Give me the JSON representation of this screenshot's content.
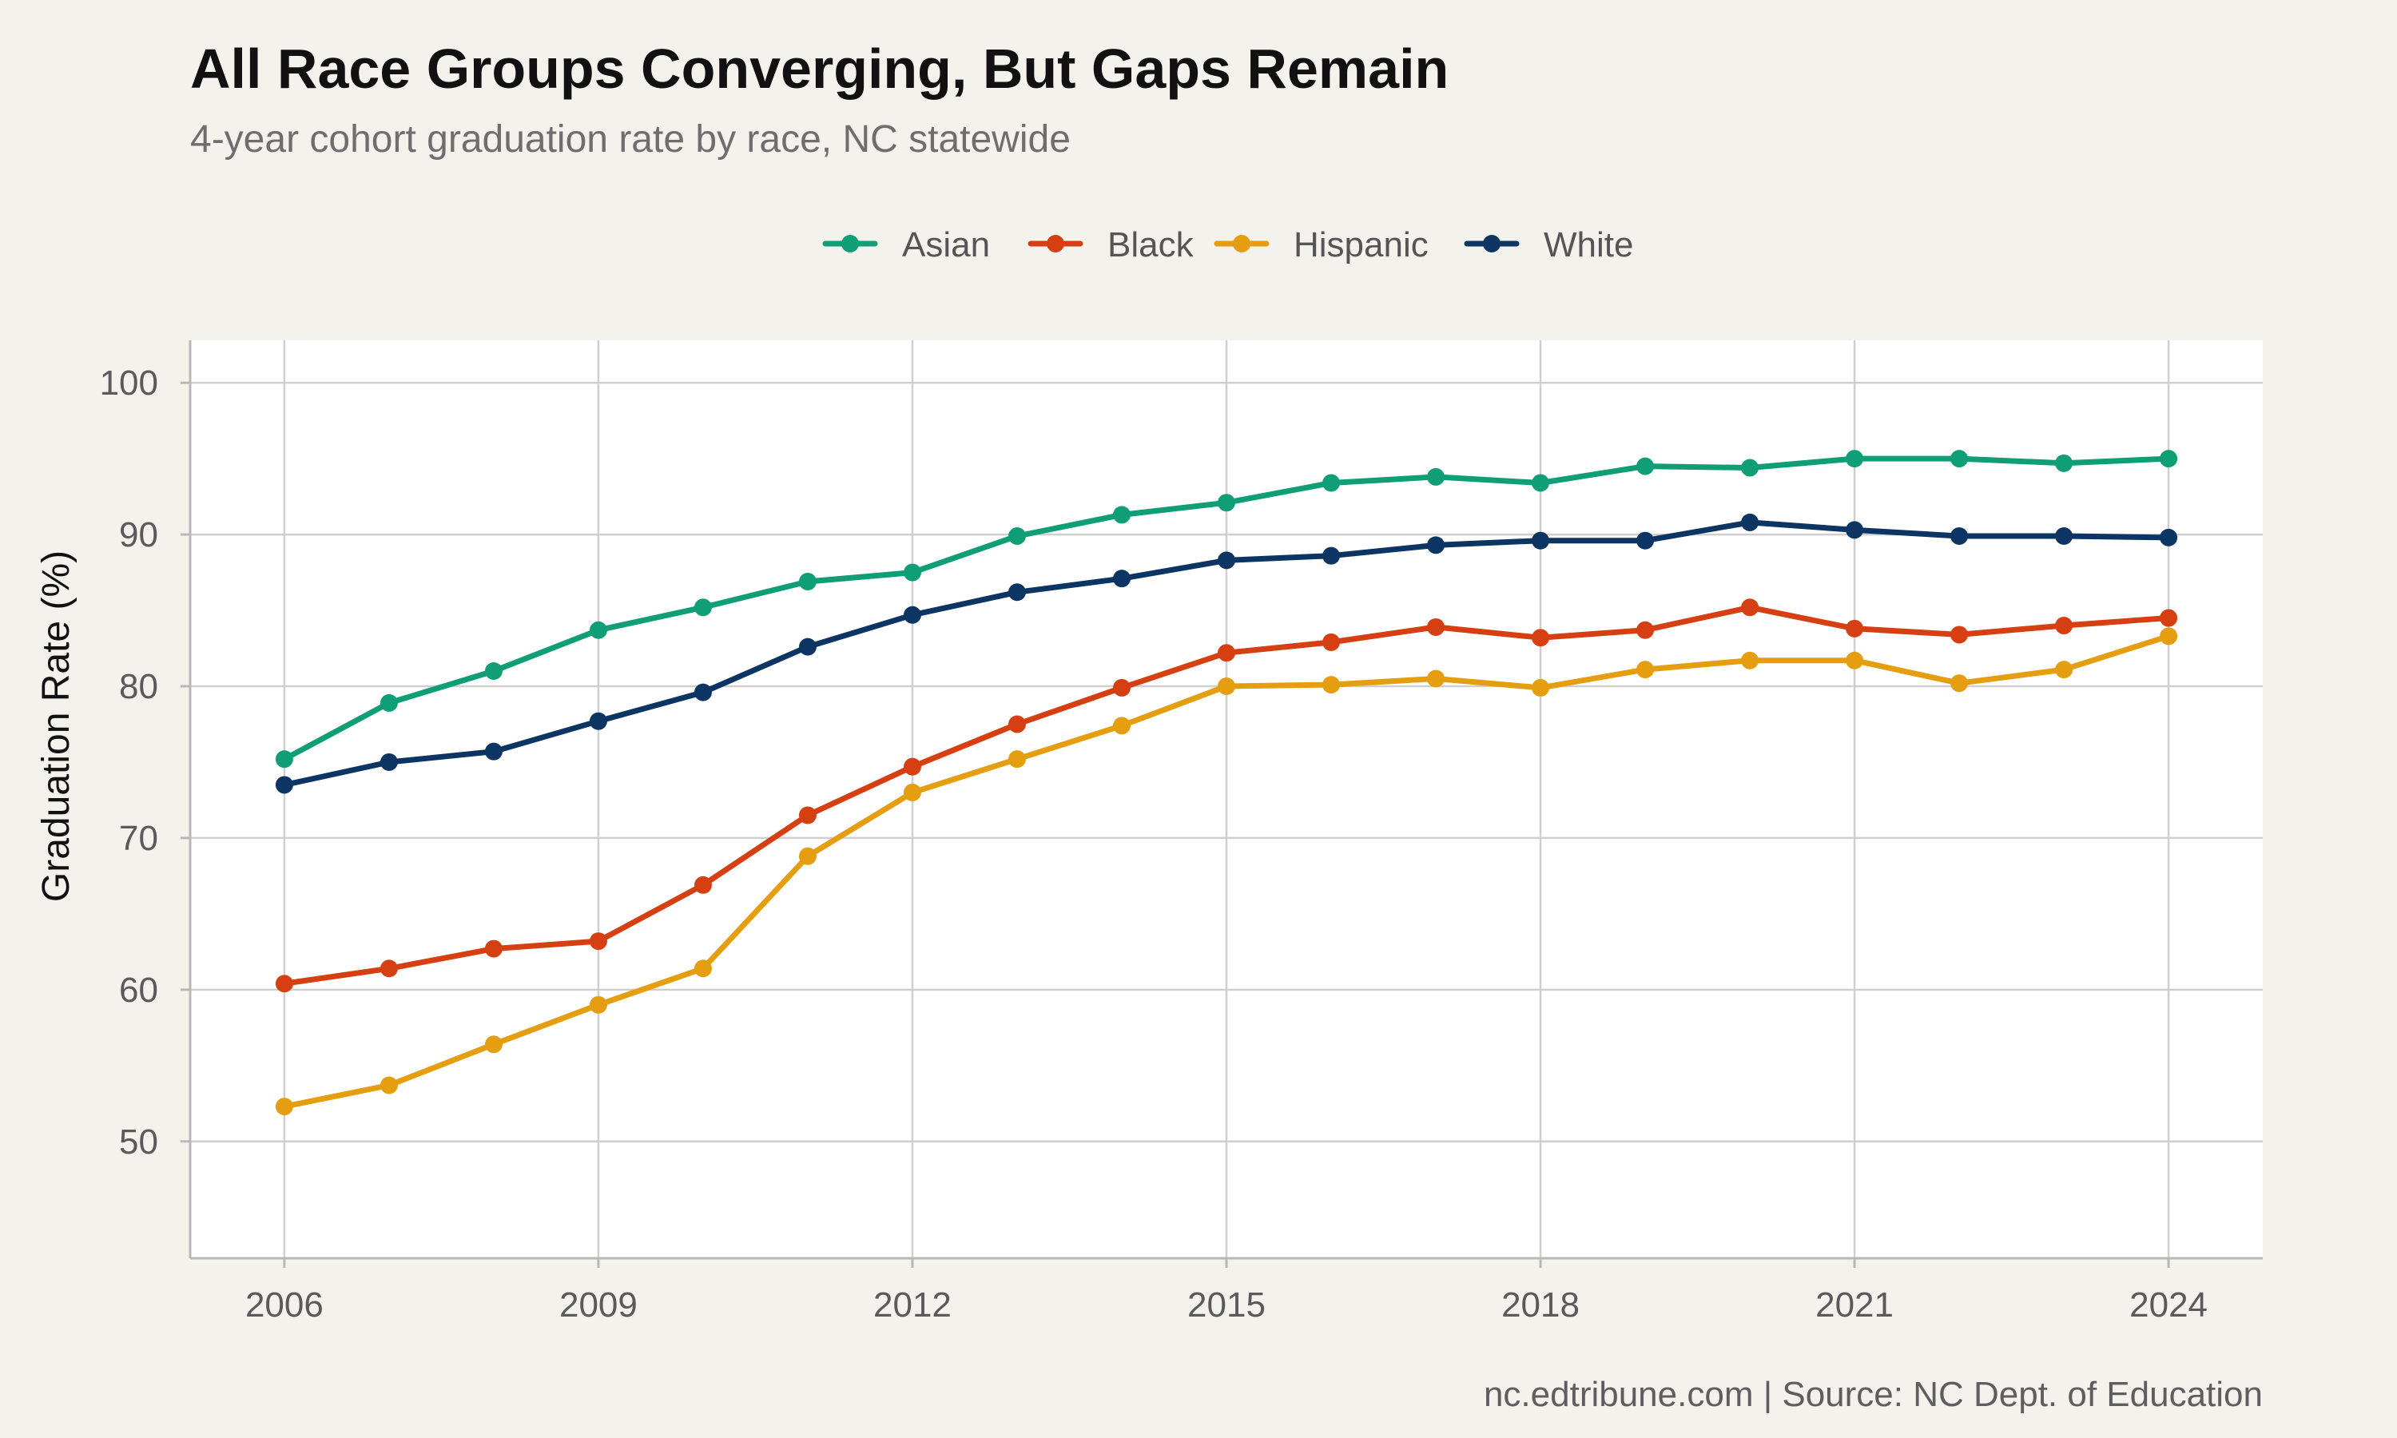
{
  "chart_data": {
    "type": "line",
    "title": "All Race Groups Converging, But Gaps Remain",
    "subtitle": "4-year cohort graduation rate by race, NC statewide",
    "xlabel": "",
    "ylabel": "Graduation Rate (%)",
    "caption": "nc.edtribune.com | Source: NC Dept. of Education",
    "x": [
      2006,
      2007,
      2008,
      2009,
      2010,
      2011,
      2012,
      2013,
      2014,
      2015,
      2016,
      2017,
      2018,
      2019,
      2020,
      2021,
      2022,
      2023,
      2024
    ],
    "x_ticks": [
      2006,
      2009,
      2012,
      2015,
      2018,
      2021,
      2024
    ],
    "y_ticks": [
      50,
      60,
      70,
      80,
      90,
      100
    ],
    "xlim": [
      2005.1,
      2024.9
    ],
    "ylim": [
      42.3,
      102.8
    ],
    "grid": true,
    "legend_position": "top",
    "series": [
      {
        "name": "Asian",
        "color": "#109e77",
        "values": [
          75.2,
          78.9,
          81.0,
          83.7,
          85.2,
          86.9,
          87.5,
          89.9,
          91.3,
          92.1,
          93.4,
          93.8,
          93.4,
          94.5,
          94.4,
          95.0,
          95.0,
          94.7,
          95.0
        ]
      },
      {
        "name": "Black",
        "color": "#d63f11",
        "values": [
          60.4,
          61.4,
          62.7,
          63.2,
          66.9,
          71.5,
          74.7,
          77.5,
          79.9,
          82.2,
          82.9,
          83.9,
          83.2,
          83.7,
          85.2,
          83.8,
          83.4,
          84.0,
          84.5
        ]
      },
      {
        "name": "Hispanic",
        "color": "#e49e10",
        "values": [
          52.3,
          53.7,
          56.4,
          59.0,
          61.4,
          68.8,
          73.0,
          75.2,
          77.4,
          80.0,
          80.1,
          80.5,
          79.9,
          81.1,
          81.7,
          81.7,
          80.2,
          81.1,
          83.3
        ]
      },
      {
        "name": "White",
        "color": "#0c3563",
        "values": [
          73.5,
          75.0,
          75.7,
          77.7,
          79.6,
          82.6,
          84.7,
          86.2,
          87.1,
          88.3,
          88.6,
          89.3,
          89.6,
          89.6,
          90.8,
          90.3,
          89.9,
          89.9,
          89.8
        ]
      }
    ]
  }
}
